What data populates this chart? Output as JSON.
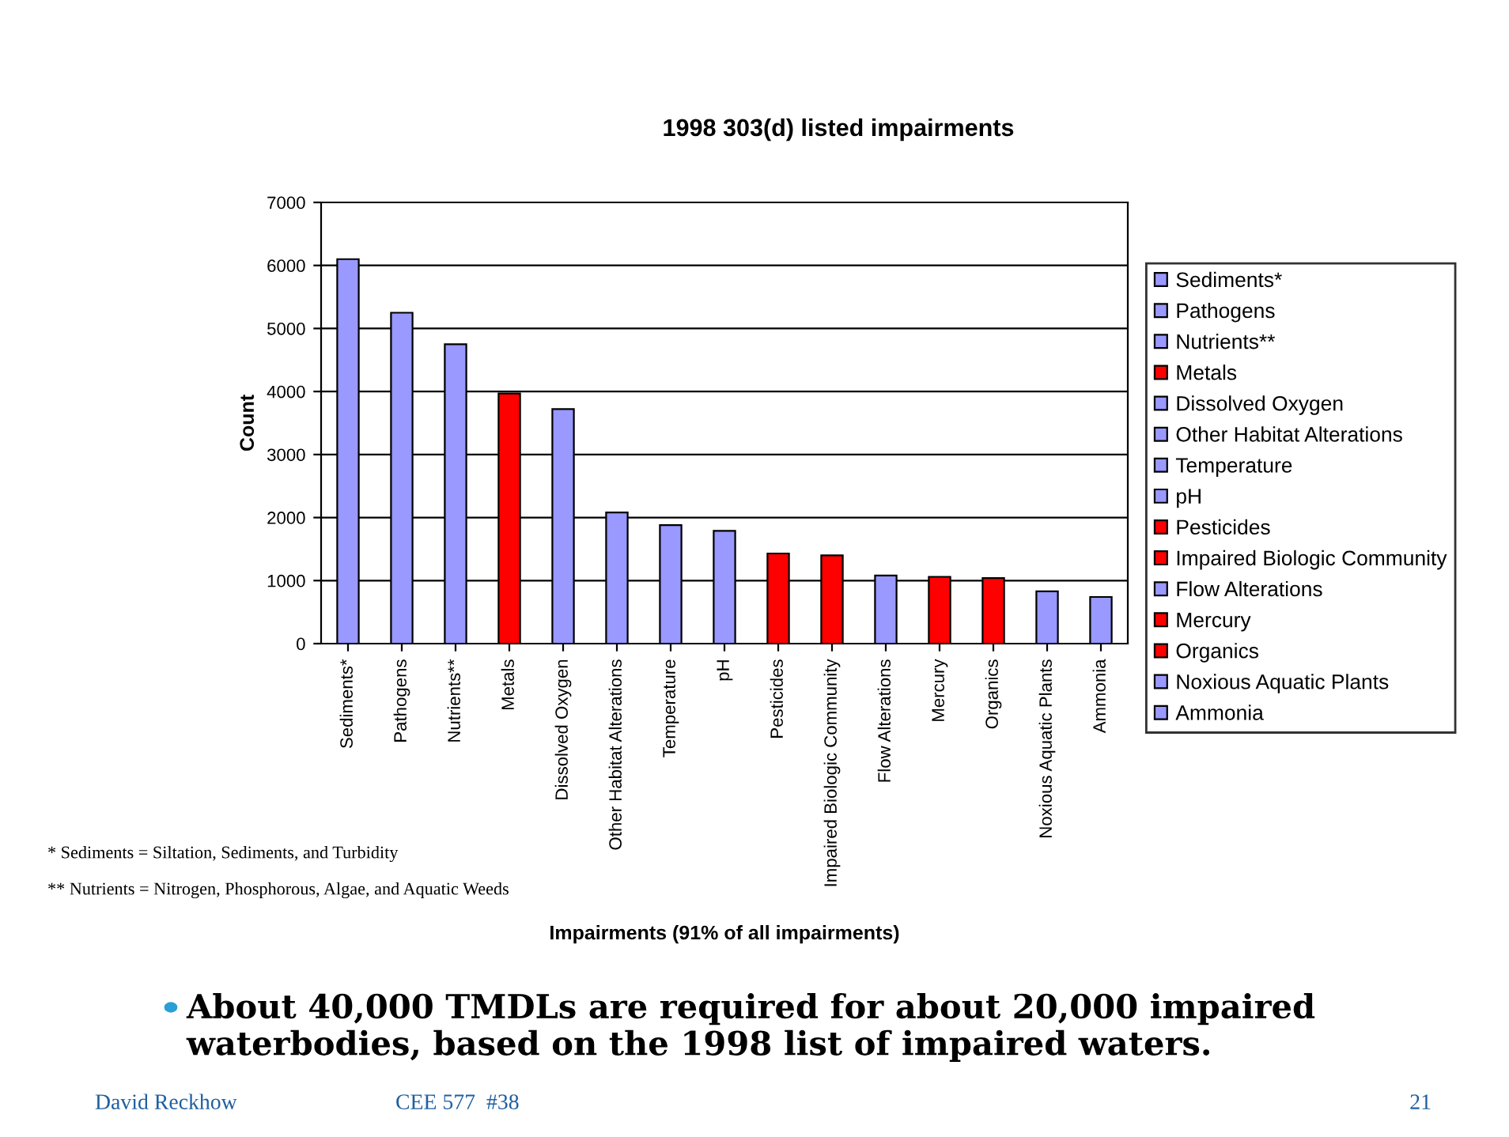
{
  "chart_data": {
    "type": "bar",
    "title": "1998 303(d) listed impairments",
    "xlabel": "Impairments (91% of all impairments)",
    "ylabel": "Count",
    "categories": [
      "Sediments*",
      "Pathogens",
      "Nutrients**",
      "Metals",
      "Dissolved Oxygen",
      "Other Habitat Alterations",
      "Temperature",
      "pH",
      "Pesticides",
      "Impaired Biologic Community",
      "Flow Alterations",
      "Mercury",
      "Organics",
      "Noxious Aquatic Plants",
      "Ammonia"
    ],
    "series": [
      {
        "name": "Sediments*",
        "color": "#9999ff",
        "values": [
          6100,
          null,
          null,
          null,
          null,
          null,
          null,
          null,
          null,
          null,
          null,
          null,
          null,
          null,
          null
        ]
      },
      {
        "name": "Pathogens",
        "color": "#9999ff",
        "values": [
          null,
          5250,
          null,
          null,
          null,
          null,
          null,
          null,
          null,
          null,
          null,
          null,
          null,
          null,
          null
        ]
      },
      {
        "name": "Nutrients**",
        "color": "#9999ff",
        "values": [
          null,
          null,
          4750,
          null,
          null,
          null,
          null,
          null,
          null,
          null,
          null,
          null,
          null,
          null,
          null
        ]
      },
      {
        "name": "Metals",
        "color": "#ff0000",
        "values": [
          null,
          null,
          null,
          3970,
          null,
          null,
          null,
          null,
          null,
          null,
          null,
          null,
          null,
          null,
          null
        ]
      },
      {
        "name": "Dissolved Oxygen",
        "color": "#9999ff",
        "values": [
          null,
          null,
          null,
          null,
          3720,
          null,
          null,
          null,
          null,
          null,
          null,
          null,
          null,
          null,
          null
        ]
      },
      {
        "name": "Other Habitat Alterations",
        "color": "#9999ff",
        "values": [
          null,
          null,
          null,
          null,
          null,
          2080,
          null,
          null,
          null,
          null,
          null,
          null,
          null,
          null,
          null
        ]
      },
      {
        "name": "Temperature",
        "color": "#9999ff",
        "values": [
          null,
          null,
          null,
          null,
          null,
          null,
          1880,
          null,
          null,
          null,
          null,
          null,
          null,
          null,
          null
        ]
      },
      {
        "name": "pH",
        "color": "#9999ff",
        "values": [
          null,
          null,
          null,
          null,
          null,
          null,
          null,
          1790,
          null,
          null,
          null,
          null,
          null,
          null,
          null
        ]
      },
      {
        "name": "Pesticides",
        "color": "#ff0000",
        "values": [
          null,
          null,
          null,
          null,
          null,
          null,
          null,
          null,
          1430,
          null,
          null,
          null,
          null,
          null,
          null
        ]
      },
      {
        "name": "Impaired Biologic Community",
        "color": "#ff0000",
        "values": [
          null,
          null,
          null,
          null,
          null,
          null,
          null,
          null,
          null,
          1400,
          null,
          null,
          null,
          null,
          null
        ]
      },
      {
        "name": "Flow Alterations",
        "color": "#9999ff",
        "values": [
          null,
          null,
          null,
          null,
          null,
          null,
          null,
          null,
          null,
          null,
          1080,
          null,
          null,
          null,
          null
        ]
      },
      {
        "name": "Mercury",
        "color": "#ff0000",
        "values": [
          null,
          null,
          null,
          null,
          null,
          null,
          null,
          null,
          null,
          null,
          null,
          1060,
          null,
          null,
          null
        ]
      },
      {
        "name": "Organics",
        "color": "#ff0000",
        "values": [
          null,
          null,
          null,
          null,
          null,
          null,
          null,
          null,
          null,
          null,
          null,
          null,
          1040,
          null,
          null
        ]
      },
      {
        "name": "Noxious Aquatic Plants",
        "color": "#9999ff",
        "values": [
          null,
          null,
          null,
          null,
          null,
          null,
          null,
          null,
          null,
          null,
          null,
          null,
          null,
          830,
          null
        ]
      },
      {
        "name": "Ammonia",
        "color": "#9999ff",
        "values": [
          null,
          null,
          null,
          null,
          null,
          null,
          null,
          null,
          null,
          null,
          null,
          null,
          null,
          null,
          740
        ]
      }
    ],
    "ylim": [
      0,
      7000
    ],
    "yticks": [
      0,
      1000,
      2000,
      3000,
      4000,
      5000,
      6000,
      7000
    ],
    "grid": "y",
    "legend": "right",
    "annotations": [
      "* Sediments = Siltation, Sediments, and Turbidity",
      "** Nutrients = Nitrogen, Phosphorous, Algae, and Aquatic Weeds",
      "About 40,000 TMDLs are required for about 20,000 impaired waterbodies, based on the 1998 list of impaired waters.",
      "David Reckhow",
      "CEE 577  #38",
      "21"
    ]
  }
}
